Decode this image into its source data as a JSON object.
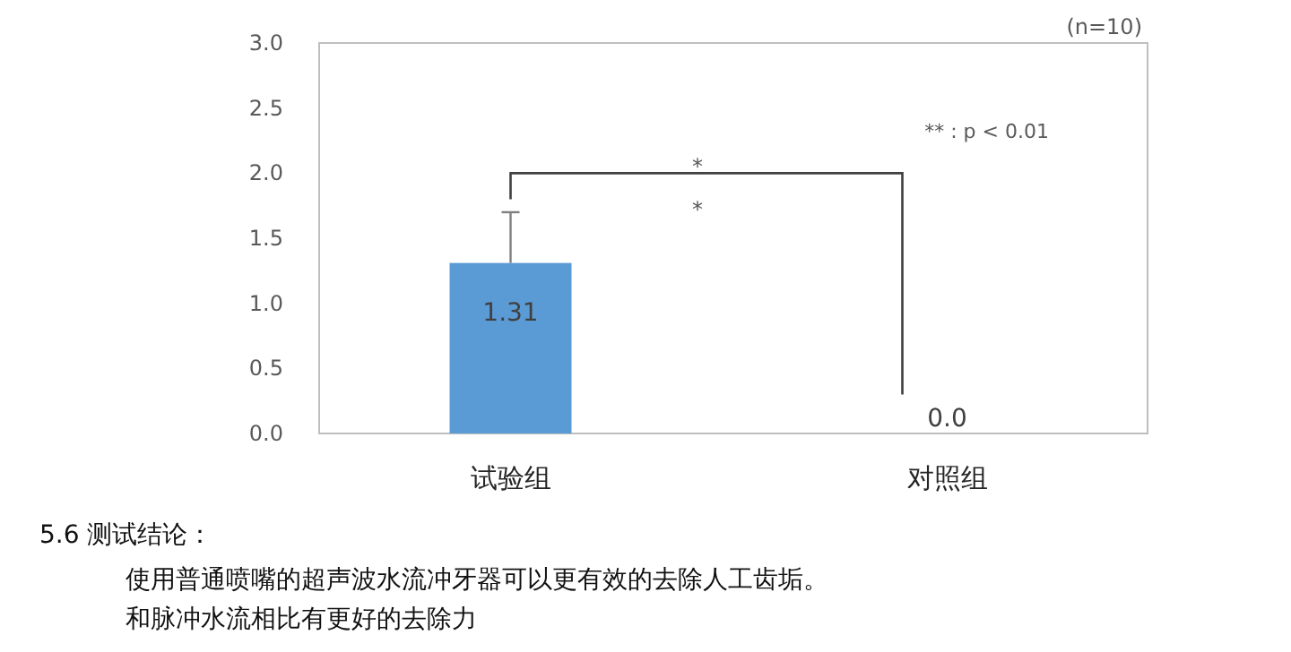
{
  "chart_data": {
    "type": "bar",
    "categories": [
      "试验组",
      "对照组"
    ],
    "values": [
      1.31,
      0.0
    ],
    "color": "#5b9bd5",
    "errors": [
      [
        1.31,
        1.7
      ],
      null
    ],
    "value_labels": [
      "1.31",
      "0.0"
    ],
    "ylim": [
      0,
      3
    ],
    "yticks": [
      {
        "value": 0,
        "label": "0.0"
      },
      {
        "value": 0.5,
        "label": "0.5"
      },
      {
        "value": 1,
        "label": "1.0"
      },
      {
        "value": 1.5,
        "label": "1.5"
      },
      {
        "value": 2,
        "label": "2.0"
      },
      {
        "value": 2.5,
        "label": "2.5"
      },
      {
        "value": 3,
        "label": "3.0"
      }
    ],
    "annotations": [
      "(n=10)",
      "** : p < 0.01",
      "*",
      "*",
      "5.6 测试结论：",
      "使用普通喷嘴的超声波水流冲牙器可以更有效的去除人工齿垢。",
      "和脉冲水流相比有更好的去除力"
    ]
  }
}
